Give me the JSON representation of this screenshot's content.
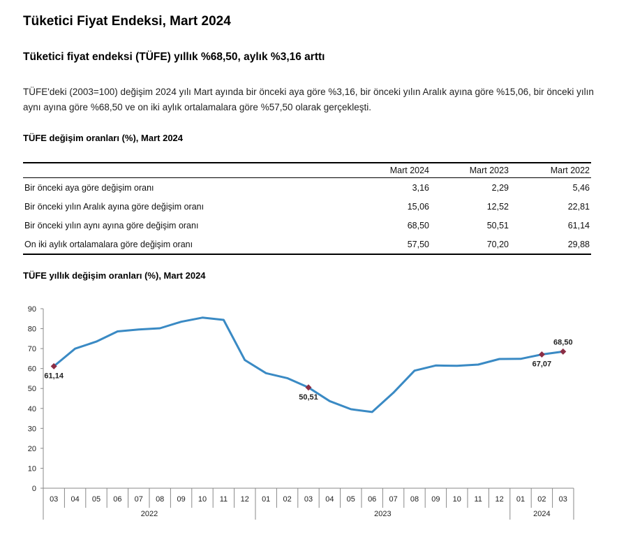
{
  "page": {
    "title": "Tüketici Fiyat Endeksi, Mart 2024",
    "headline": "Tüketici fiyat endeksi (TÜFE) yıllık %68,50, aylık %3,16 arttı",
    "paragraph": "TÜFE'deki (2003=100) değişim 2024 yılı Mart ayında bir önceki aya göre %3,16, bir önceki yılın Aralık ayına göre %15,06, bir önceki yılın aynı ayına göre %68,50 ve on iki aylık ortalamalara göre %57,50 olarak gerçekleşti."
  },
  "table": {
    "title": "TÜFE değişim oranları (%), Mart 2024",
    "headers": [
      "",
      "Mart 2024",
      "Mart 2023",
      "Mart 2022"
    ],
    "rows": [
      {
        "label": "Bir önceki aya göre değişim oranı",
        "values": [
          "3,16",
          "2,29",
          "5,46"
        ]
      },
      {
        "label": "Bir önceki yılın Aralık ayına göre değişim oranı",
        "values": [
          "15,06",
          "12,52",
          "22,81"
        ]
      },
      {
        "label": "Bir önceki yılın aynı ayına göre değişim oranı",
        "values": [
          "68,50",
          "50,51",
          "61,14"
        ]
      },
      {
        "label": "On iki aylık ortalamalara göre değişim oranı",
        "values": [
          "57,50",
          "70,20",
          "29,88"
        ]
      }
    ]
  },
  "chart_data": {
    "type": "line",
    "title": "TÜFE yıllık değişim oranları (%), Mart 2024",
    "ylim": [
      0,
      90
    ],
    "yticks": [
      "0",
      "10",
      "20",
      "30",
      "40",
      "50",
      "60",
      "70",
      "80",
      "90"
    ],
    "x": [
      "03",
      "04",
      "05",
      "06",
      "07",
      "08",
      "09",
      "10",
      "11",
      "12",
      "01",
      "02",
      "03",
      "04",
      "05",
      "06",
      "07",
      "08",
      "09",
      "10",
      "11",
      "12",
      "01",
      "02",
      "03"
    ],
    "year_groups": [
      {
        "label": "2022",
        "count": 10
      },
      {
        "label": "2023",
        "count": 12
      },
      {
        "label": "2024",
        "count": 3
      }
    ],
    "series": [
      {
        "color": "#3a8ac4",
        "values": [
          61.14,
          69.97,
          73.5,
          78.62,
          79.6,
          80.21,
          83.45,
          85.51,
          84.39,
          64.27,
          57.68,
          55.18,
          50.51,
          43.68,
          39.59,
          38.21,
          47.83,
          58.94,
          61.53,
          61.36,
          61.98,
          64.77,
          64.86,
          67.07,
          68.5
        ]
      }
    ],
    "highlights": [
      {
        "index": 0,
        "label": "61,14",
        "pos": "below"
      },
      {
        "index": 12,
        "label": "50,51",
        "pos": "below"
      },
      {
        "index": 23,
        "label": "67,07",
        "pos": "below"
      },
      {
        "index": 24,
        "label": "68,50",
        "pos": "above"
      }
    ],
    "marker_color": "#8b2e45",
    "grid": false,
    "legend": "none"
  }
}
